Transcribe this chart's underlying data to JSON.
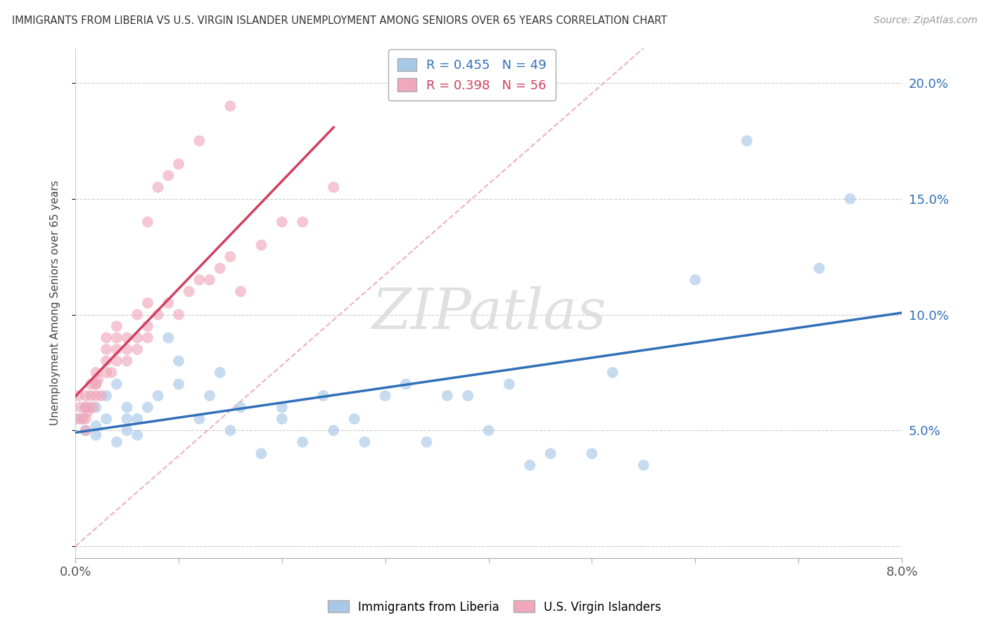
{
  "title": "IMMIGRANTS FROM LIBERIA VS U.S. VIRGIN ISLANDER UNEMPLOYMENT AMONG SENIORS OVER 65 YEARS CORRELATION CHART",
  "source": "Source: ZipAtlas.com",
  "ylabel": "Unemployment Among Seniors over 65 years",
  "xlim": [
    0.0,
    0.08
  ],
  "ylim": [
    -0.005,
    0.215
  ],
  "xticks": [
    0.0,
    0.01,
    0.02,
    0.03,
    0.04,
    0.05,
    0.06,
    0.07,
    0.08
  ],
  "xticklabels": [
    "0.0%",
    "",
    "",
    "",
    "",
    "",
    "",
    "",
    "8.0%"
  ],
  "yticks": [
    0.0,
    0.05,
    0.1,
    0.15,
    0.2
  ],
  "yticklabels": [
    "",
    "5.0%",
    "10.0%",
    "15.0%",
    "20.0%"
  ],
  "blue_color": "#A8C8E8",
  "pink_color": "#F0A8BC",
  "blue_line_color": "#3070B8",
  "pink_line_color": "#D04060",
  "R_blue": 0.455,
  "N_blue": 49,
  "R_pink": 0.398,
  "N_pink": 56,
  "blue_scatter_x": [
    0.0005,
    0.001,
    0.001,
    0.002,
    0.002,
    0.002,
    0.003,
    0.003,
    0.004,
    0.004,
    0.005,
    0.005,
    0.005,
    0.006,
    0.006,
    0.007,
    0.008,
    0.009,
    0.01,
    0.01,
    0.012,
    0.013,
    0.014,
    0.015,
    0.016,
    0.018,
    0.02,
    0.02,
    0.022,
    0.024,
    0.025,
    0.027,
    0.028,
    0.03,
    0.032,
    0.034,
    0.036,
    0.038,
    0.04,
    0.042,
    0.044,
    0.046,
    0.05,
    0.052,
    0.055,
    0.06,
    0.065,
    0.072,
    0.075
  ],
  "blue_scatter_y": [
    0.055,
    0.05,
    0.06,
    0.048,
    0.052,
    0.06,
    0.055,
    0.065,
    0.045,
    0.07,
    0.05,
    0.055,
    0.06,
    0.048,
    0.055,
    0.06,
    0.065,
    0.09,
    0.07,
    0.08,
    0.055,
    0.065,
    0.075,
    0.05,
    0.06,
    0.04,
    0.055,
    0.06,
    0.045,
    0.065,
    0.05,
    0.055,
    0.045,
    0.065,
    0.07,
    0.045,
    0.065,
    0.065,
    0.05,
    0.07,
    0.035,
    0.04,
    0.04,
    0.075,
    0.035,
    0.115,
    0.175,
    0.12,
    0.15
  ],
  "pink_scatter_x": [
    0.0002,
    0.0003,
    0.0005,
    0.0007,
    0.001,
    0.001,
    0.001,
    0.001,
    0.0012,
    0.0013,
    0.0015,
    0.0015,
    0.0017,
    0.002,
    0.002,
    0.002,
    0.002,
    0.0022,
    0.0025,
    0.003,
    0.003,
    0.003,
    0.003,
    0.0035,
    0.004,
    0.004,
    0.004,
    0.004,
    0.005,
    0.005,
    0.005,
    0.006,
    0.006,
    0.006,
    0.007,
    0.007,
    0.007,
    0.008,
    0.009,
    0.01,
    0.011,
    0.012,
    0.013,
    0.014,
    0.015,
    0.016,
    0.018,
    0.02,
    0.022,
    0.025,
    0.007,
    0.008,
    0.009,
    0.01,
    0.012,
    0.015
  ],
  "pink_scatter_y": [
    0.055,
    0.065,
    0.06,
    0.055,
    0.05,
    0.055,
    0.06,
    0.065,
    0.058,
    0.06,
    0.065,
    0.07,
    0.06,
    0.07,
    0.075,
    0.065,
    0.07,
    0.072,
    0.065,
    0.075,
    0.08,
    0.085,
    0.09,
    0.075,
    0.08,
    0.085,
    0.09,
    0.095,
    0.08,
    0.085,
    0.09,
    0.085,
    0.09,
    0.1,
    0.09,
    0.095,
    0.105,
    0.1,
    0.105,
    0.1,
    0.11,
    0.115,
    0.115,
    0.12,
    0.125,
    0.11,
    0.13,
    0.14,
    0.14,
    0.155,
    0.14,
    0.155,
    0.16,
    0.165,
    0.175,
    0.19
  ],
  "watermark": "ZIPatlas",
  "background_color": "#FFFFFF",
  "grid_color": "#CCCCCC",
  "diag_line_color": "#E8A0B0",
  "diag_line_x": [
    0.0,
    0.055
  ],
  "diag_line_y": [
    0.0,
    0.215
  ]
}
